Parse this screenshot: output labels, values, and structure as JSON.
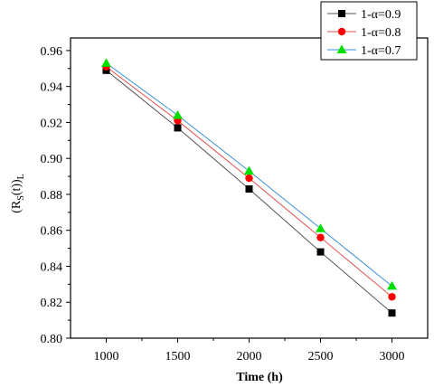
{
  "chart_data": {
    "type": "line",
    "title": "",
    "xlabel": "Time (h)",
    "ylabel": {
      "base": "(R",
      "sub1": "S",
      "mid": "(t))",
      "sub2": "L"
    },
    "x": [
      1000,
      1500,
      2000,
      2500,
      3000
    ],
    "xticks": [
      "1000",
      "1500",
      "2000",
      "2500",
      "3000"
    ],
    "yticks": [
      "0.80",
      "0.82",
      "0.84",
      "0.86",
      "0.88",
      "0.90",
      "0.92",
      "0.94",
      "0.96"
    ],
    "xlim": [
      750,
      3250
    ],
    "ylim": [
      0.8,
      0.967
    ],
    "grid": false,
    "legend_position": "top-right",
    "series": [
      {
        "name": "1-α=0.9",
        "color": "#000000",
        "line_color": "#555555",
        "marker": "square",
        "values": [
          0.949,
          0.917,
          0.883,
          0.848,
          0.814
        ]
      },
      {
        "name": "1-α=0.8",
        "color": "#ff0000",
        "line_color": "#e05555",
        "marker": "circle",
        "values": [
          0.951,
          0.921,
          0.889,
          0.856,
          0.823
        ]
      },
      {
        "name": "1-α=0.7",
        "color": "#00e000",
        "line_color": "#3a8fd9",
        "marker": "triangle",
        "values": [
          0.953,
          0.924,
          0.893,
          0.861,
          0.829
        ]
      }
    ]
  }
}
